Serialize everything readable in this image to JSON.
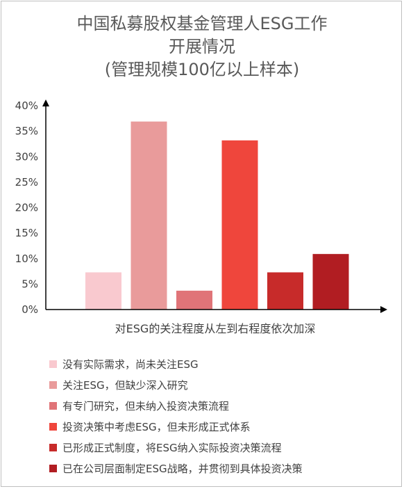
{
  "title_lines": [
    "中国私募股权基金管理人ESG工作",
    "开展情况",
    "(管理规模100亿以上样本)"
  ],
  "chart_data": {
    "type": "bar",
    "title": "中国私募股权基金管理人ESG工作开展情况(管理规模100亿以上样本)",
    "xlabel": "对ESG的关注程度从左到右程度依次加深",
    "ylabel": "",
    "ylim": [
      0,
      40
    ],
    "yticks": [
      "0%",
      "5%",
      "10%",
      "15%",
      "20%",
      "25%",
      "30%",
      "35%",
      "40%"
    ],
    "unit": "%",
    "grid": false,
    "legend_position": "bottom",
    "series": [
      {
        "name": "没有实际需求，尚未关注ESG",
        "value": 7.3,
        "color": "#f9c9cf"
      },
      {
        "name": "关注ESG，但缺少深入研究",
        "value": 36.9,
        "color": "#e99b9b"
      },
      {
        "name": "有专门研究，但未纳入投资决策流程",
        "value": 3.7,
        "color": "#e07478"
      },
      {
        "name": "投资决策中考虑ESG，但未形成正式体系",
        "value": 33.2,
        "color": "#ef463c"
      },
      {
        "name": "已形成正式制度，将ESG纳入实际投资决策流程",
        "value": 7.3,
        "color": "#c72b2a"
      },
      {
        "name": "已在公司层面制定ESG战略，并贯彻到具体投资决策",
        "value": 10.9,
        "color": "#b11d22"
      }
    ]
  }
}
